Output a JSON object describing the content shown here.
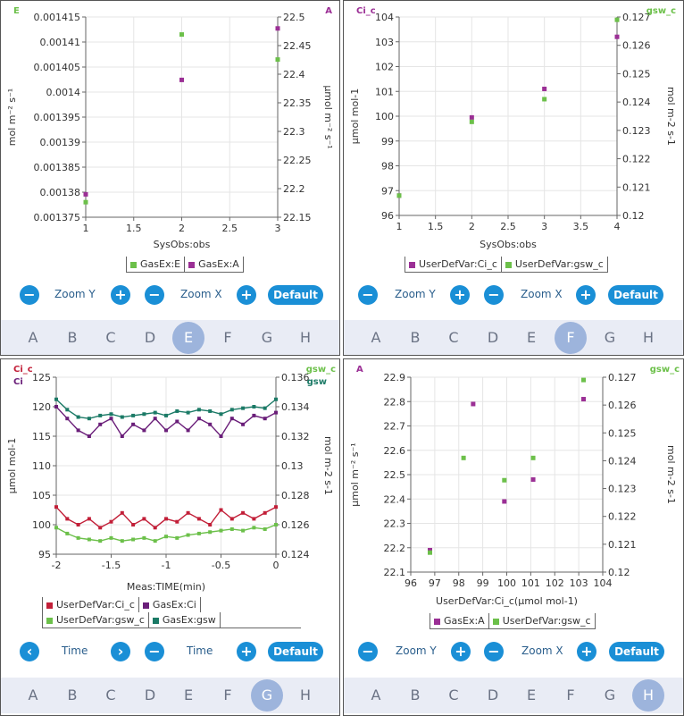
{
  "colors": {
    "green": "#6cc04a",
    "purple": "#9b2f95",
    "red": "#c21f38",
    "dpurple": "#6a1e79",
    "teal": "#1b7a66",
    "accent": "#1a8fd6"
  },
  "tabs": [
    "A",
    "B",
    "C",
    "D",
    "E",
    "F",
    "G",
    "H"
  ],
  "panels": [
    {
      "id": "p1",
      "active_tab": "E",
      "corner_left": "E",
      "corner_right": "A",
      "controls": {
        "zoom_y": "Zoom Y",
        "zoom_x": "Zoom X",
        "default": "Default"
      },
      "legend": [
        {
          "label": "GasEx:E",
          "color": "green"
        },
        {
          "label": "GasEx:A",
          "color": "purple"
        }
      ]
    },
    {
      "id": "p2",
      "active_tab": "F",
      "corner_left": "Ci_c",
      "corner_right": "gsw_c",
      "controls": {
        "zoom_y": "Zoom Y",
        "zoom_x": "Zoom X",
        "default": "Default"
      },
      "legend": [
        {
          "label": "UserDefVar:Ci_c",
          "color": "purple"
        },
        {
          "label": "UserDefVar:gsw_c",
          "color": "green"
        }
      ]
    },
    {
      "id": "p3",
      "active_tab": "G",
      "corner_left": "Ci_c",
      "corner_left2": "Ci",
      "corner_right": "gsw_c",
      "corner_right2": "gsw",
      "controls": {
        "zoom_y": "Time",
        "zoom_x": "Time",
        "default": "Default"
      },
      "legend": [
        {
          "label": "UserDefVar:Ci_c",
          "color": "red"
        },
        {
          "label": "GasEx:Ci",
          "color": "dpurple"
        },
        {
          "label": "UserDefVar:gsw_c",
          "color": "green"
        },
        {
          "label": "GasEx:gsw",
          "color": "teal"
        }
      ]
    },
    {
      "id": "p4",
      "active_tab": "H",
      "corner_left": "A",
      "corner_right": "gsw_c",
      "controls": {
        "zoom_y": "Zoom Y",
        "zoom_x": "Zoom X",
        "default": "Default"
      },
      "legend": [
        {
          "label": "GasEx:A",
          "color": "purple"
        },
        {
          "label": "UserDefVar:gsw_c",
          "color": "green"
        }
      ]
    }
  ],
  "chart_data": [
    {
      "type": "scatter",
      "xlabel": "SysObs:obs",
      "ylabel": "mol m⁻² s⁻¹",
      "y2label": "µmol m⁻² s⁻¹",
      "xlim": [
        1,
        3
      ],
      "xticks": [
        "1",
        "1.5",
        "2",
        "2.5",
        "3"
      ],
      "ylim": [
        0.001375,
        0.001415
      ],
      "yticks": [
        "0.001375",
        "0.00138",
        "0.001385",
        "0.00139",
        "0.001395",
        "0.0014",
        "0.001405",
        "0.00141",
        "0.001415"
      ],
      "y2lim": [
        22.15,
        22.5
      ],
      "y2ticks": [
        "22.15",
        "22.2",
        "22.25",
        "22.3",
        "22.35",
        "22.4",
        "22.45",
        "22.5"
      ],
      "series": [
        {
          "name": "GasEx:E",
          "axis": "left",
          "color": "green",
          "x": [
            1,
            2,
            3
          ],
          "y": [
            0.001378,
            0.0014115,
            0.0014065
          ]
        },
        {
          "name": "GasEx:A",
          "axis": "right",
          "color": "purple",
          "x": [
            1,
            2,
            3
          ],
          "y": [
            22.19,
            22.39,
            22.48
          ]
        }
      ]
    },
    {
      "type": "scatter",
      "xlabel": "SysObs:obs",
      "ylabel": "µmol mol-1",
      "y2label": "mol m-2 s-1",
      "xlim": [
        1,
        4
      ],
      "xticks": [
        "1",
        "1.5",
        "2",
        "2.5",
        "3",
        "3.5",
        "4"
      ],
      "ylim": [
        96,
        104
      ],
      "yticks": [
        "96",
        "97",
        "98",
        "99",
        "100",
        "101",
        "102",
        "103",
        "104"
      ],
      "y2lim": [
        0.12,
        0.127
      ],
      "y2ticks": [
        "0.12",
        "0.121",
        "0.122",
        "0.123",
        "0.124",
        "0.125",
        "0.126",
        "0.127"
      ],
      "series": [
        {
          "name": "UserDefVar:Ci_c",
          "axis": "left",
          "color": "purple",
          "x": [
            1,
            2,
            3,
            4
          ],
          "y": [
            96.8,
            99.95,
            101.1,
            103.2
          ]
        },
        {
          "name": "UserDefVar:gsw_c",
          "axis": "right",
          "color": "green",
          "x": [
            1,
            2,
            3,
            4
          ],
          "y": [
            0.1207,
            0.1233,
            0.1241,
            0.1269
          ]
        }
      ]
    },
    {
      "type": "line",
      "xlabel": "Meas:TIME(min)",
      "ylabel": "µmol mol-1",
      "y2label": "mol m-2 s-1",
      "xlim": [
        -2,
        0
      ],
      "xticks": [
        "-2",
        "-1.5",
        "-1",
        "-0.5",
        "0"
      ],
      "ylim": [
        95,
        125
      ],
      "yticks": [
        "95",
        "100",
        "105",
        "110",
        "115",
        "120",
        "125"
      ],
      "y2lim": [
        0.124,
        0.136
      ],
      "y2ticks": [
        "0.124",
        "0.126",
        "0.128",
        "0.13",
        "0.132",
        "0.134",
        "0.136"
      ],
      "series": [
        {
          "name": "UserDefVar:Ci_c",
          "axis": "left",
          "color": "red",
          "x": [
            -2,
            -1.9,
            -1.8,
            -1.7,
            -1.6,
            -1.5,
            -1.4,
            -1.3,
            -1.2,
            -1.1,
            -1,
            -0.9,
            -0.8,
            -0.7,
            -0.6,
            -0.5,
            -0.4,
            -0.3,
            -0.2,
            -0.1,
            0
          ],
          "y": [
            103,
            101,
            100,
            101,
            99.5,
            100.5,
            102,
            100,
            101,
            99.5,
            101,
            100.5,
            102,
            101,
            100,
            102.5,
            101,
            102,
            101,
            102,
            103
          ]
        },
        {
          "name": "GasEx:Ci",
          "axis": "left",
          "color": "dpurple",
          "x": [
            -2,
            -1.9,
            -1.8,
            -1.7,
            -1.6,
            -1.5,
            -1.4,
            -1.3,
            -1.2,
            -1.1,
            -1,
            -0.9,
            -0.8,
            -0.7,
            -0.6,
            -0.5,
            -0.4,
            -0.3,
            -0.2,
            -0.1,
            0
          ],
          "y": [
            120,
            118,
            116,
            115,
            117,
            118,
            115,
            117,
            116,
            118,
            116,
            117.5,
            116,
            118,
            117,
            115,
            118,
            117,
            118.5,
            118,
            119
          ]
        },
        {
          "name": "UserDefVar:gsw_c",
          "axis": "right",
          "color": "green",
          "x": [
            -2,
            -1.9,
            -1.8,
            -1.7,
            -1.6,
            -1.5,
            -1.4,
            -1.3,
            -1.2,
            -1.1,
            -1,
            -0.9,
            -0.8,
            -0.7,
            -0.6,
            -0.5,
            -0.4,
            -0.3,
            -0.2,
            -0.1,
            0
          ],
          "y": [
            0.1258,
            0.1254,
            0.1251,
            0.125,
            0.1249,
            0.1251,
            0.1249,
            0.125,
            0.1251,
            0.1249,
            0.1252,
            0.1251,
            0.1253,
            0.1254,
            0.1255,
            0.1256,
            0.1257,
            0.1256,
            0.1258,
            0.1257,
            0.126
          ]
        },
        {
          "name": "GasEx:gsw",
          "axis": "right",
          "color": "teal",
          "x": [
            -2,
            -1.9,
            -1.8,
            -1.7,
            -1.6,
            -1.5,
            -1.4,
            -1.3,
            -1.2,
            -1.1,
            -1,
            -0.9,
            -0.8,
            -0.7,
            -0.6,
            -0.5,
            -0.4,
            -0.3,
            -0.2,
            -0.1,
            0
          ],
          "y": [
            0.1345,
            0.1338,
            0.1333,
            0.1332,
            0.1334,
            0.1335,
            0.1333,
            0.1334,
            0.1335,
            0.1336,
            0.1334,
            0.1337,
            0.1336,
            0.1338,
            0.1337,
            0.1335,
            0.1338,
            0.1339,
            0.134,
            0.1339,
            0.1345
          ]
        }
      ]
    },
    {
      "type": "scatter",
      "xlabel": "UserDefVar:Ci_c(µmol mol-1)",
      "ylabel": "µmol m⁻² s⁻¹",
      "y2label": "mol m-2 s-1",
      "xlim": [
        96,
        104
      ],
      "xticks": [
        "96",
        "97",
        "98",
        "99",
        "100",
        "101",
        "102",
        "103",
        "104"
      ],
      "ylim": [
        22.1,
        22.9
      ],
      "yticks": [
        "22.1",
        "22.2",
        "22.3",
        "22.4",
        "22.5",
        "22.6",
        "22.7",
        "22.8",
        "22.9"
      ],
      "y2lim": [
        0.12,
        0.127
      ],
      "y2ticks": [
        "0.12",
        "0.121",
        "0.122",
        "0.123",
        "0.124",
        "0.125",
        "0.126",
        "0.127"
      ],
      "series": [
        {
          "name": "GasEx:A",
          "axis": "left",
          "color": "purple",
          "x": [
            96.8,
            98.6,
            99.9,
            101.1,
            103.2
          ],
          "y": [
            22.19,
            22.79,
            22.39,
            22.48,
            22.81
          ]
        },
        {
          "name": "UserDefVar:gsw_c",
          "axis": "right",
          "color": "green",
          "x": [
            96.8,
            98.2,
            99.9,
            101.1,
            103.2
          ],
          "y": [
            0.1207,
            0.1241,
            0.1233,
            0.1241,
            0.1269
          ]
        }
      ]
    }
  ]
}
